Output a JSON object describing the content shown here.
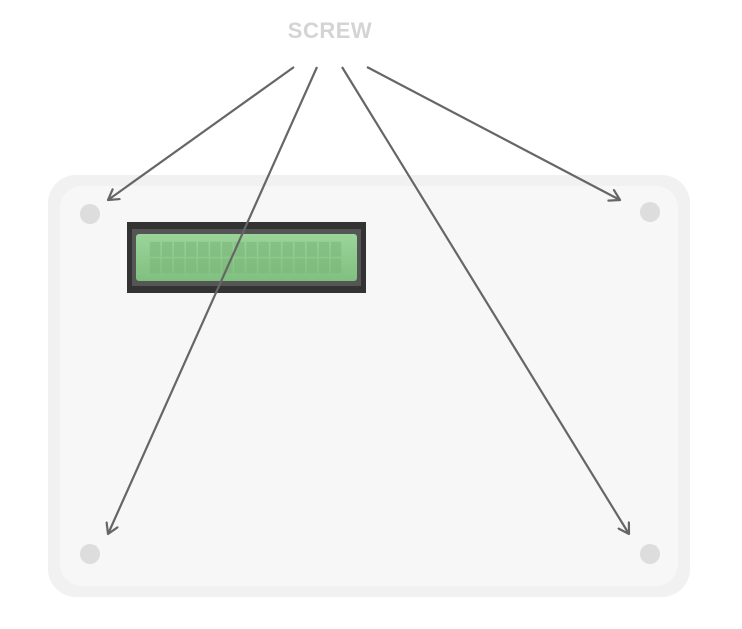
{
  "label": {
    "text": "SCREW"
  },
  "colors": {
    "board_outer": "#f1f1f1",
    "board_inner": "#f7f7f7",
    "screw_hole": "#dddddd",
    "arrow": "#666666",
    "lcd_frame": "#333333",
    "lcd_screen": "#8bc98a",
    "lcd_cell": "#78b577",
    "label": "#d4d4d4"
  },
  "icons": {
    "screw_holes": "circle-icon",
    "arrows": "arrow-icon"
  },
  "lcd": {
    "columns": 16,
    "rows": 2
  }
}
